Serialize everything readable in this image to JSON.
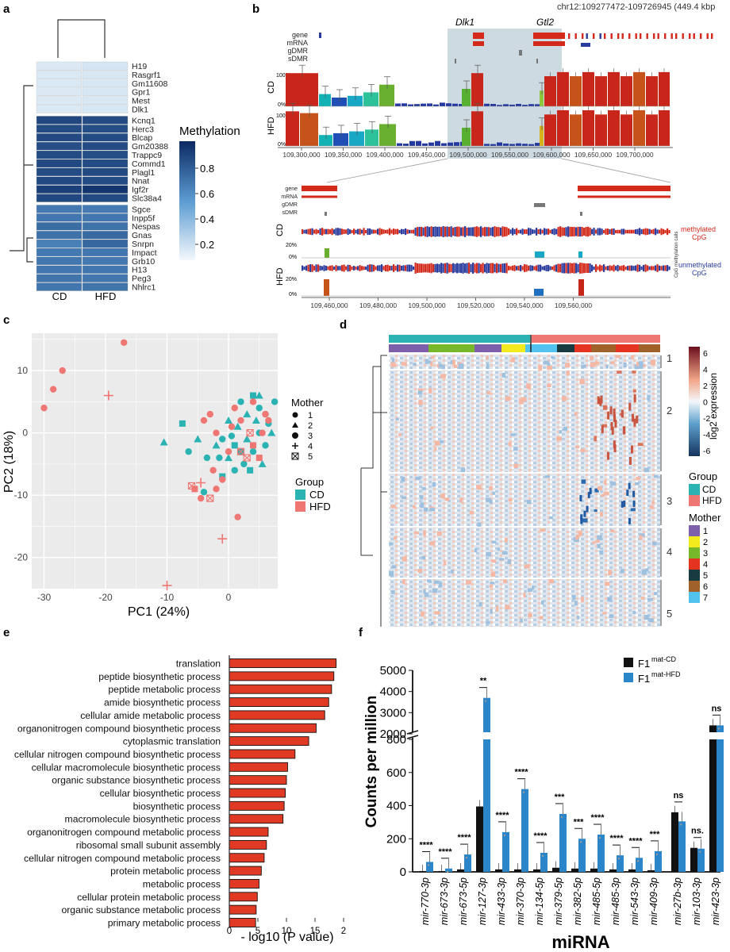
{
  "panels": {
    "a": {
      "letter": "a",
      "title": "Methylation",
      "columns": [
        "CD",
        "HFD"
      ],
      "genes": [
        "H19",
        "Rasgrf1",
        "Gm11608",
        "Gpr1",
        "Mest",
        "Dlk1",
        "Kcnq1",
        "Herc3",
        "Blcap",
        "Gm20388",
        "Trappc9",
        "Commd1",
        "Plagl1",
        "Nnat",
        "Igf2r",
        "Slc38a4",
        "Sgce",
        "Inpp5f",
        "Nespas",
        "Gnas",
        "Snrpn",
        "Impact",
        "Grb10",
        "H13",
        "Peg3",
        "Nhlrc1"
      ],
      "cd_values": [
        0.08,
        0.08,
        0.08,
        0.08,
        0.08,
        0.08,
        0.87,
        0.85,
        0.86,
        0.84,
        0.85,
        0.86,
        0.85,
        0.86,
        0.9,
        0.87,
        0.65,
        0.66,
        0.7,
        0.68,
        0.62,
        0.65,
        0.66,
        0.66,
        0.67,
        0.66
      ],
      "hfd_values": [
        0.1,
        0.09,
        0.09,
        0.09,
        0.09,
        0.09,
        0.85,
        0.84,
        0.85,
        0.85,
        0.84,
        0.85,
        0.86,
        0.85,
        0.95,
        0.86,
        0.64,
        0.66,
        0.68,
        0.72,
        0.73,
        0.66,
        0.65,
        0.66,
        0.66,
        0.67
      ],
      "colorbar_ticks": [
        "0.8",
        "0.6",
        "0.4",
        "0.2"
      ]
    },
    "b": {
      "letter": "b",
      "region": "chr12:109277472-109726945 (449.4 kbp",
      "gene_labels": [
        "Dlk1",
        "Gtl2"
      ],
      "track_labels": [
        "gene",
        "mRNA",
        "gDMR",
        "sDMR"
      ],
      "row_labels": [
        "CD",
        "HFD"
      ],
      "pct_top": "100%",
      "pct_bottom": "0%",
      "pct_20": "20%",
      "top_axis": [
        "109,300,000",
        "109,350,000",
        "109,400,000",
        "109,450,000",
        "109,500,000",
        "109,550,000",
        "109,600,000",
        "109,650,000",
        "109,700,000"
      ],
      "bottom_axis": [
        "109,460,000",
        "109,480,000",
        "109,500,000",
        "109,520,000",
        "109,540,000",
        "109,560,000"
      ],
      "legend_meth": [
        "methylated",
        "CpG"
      ],
      "legend_unmeth": [
        "unmethylated",
        "CpG"
      ],
      "side_axis": "CpG methylation calls",
      "colors": {
        "red": "#d42a1c",
        "blue": "#2a3c9e",
        "shade": "#c6d3dc"
      }
    },
    "c": {
      "letter": "c",
      "xlabel": "PC1 (24%)",
      "ylabel": "PC2 (18%)",
      "x_ticks": [
        "-30",
        "-20",
        "-10",
        "0"
      ],
      "y_ticks": [
        "10",
        "0",
        "-10",
        "-20"
      ],
      "mother_title": "Mother",
      "mother_levels": [
        "1",
        "2",
        "3",
        "4",
        "5"
      ],
      "group_title": "Group",
      "group_levels": [
        "CD",
        "HFD"
      ],
      "colors": {
        "CD": "#2bb3b3",
        "HFD": "#ef7773"
      }
    },
    "d": {
      "letter": "d",
      "cluster_labels": [
        "1",
        "2",
        "3",
        "4",
        "5"
      ],
      "colorbar_title": "log2 expression",
      "colorbar_ticks": [
        "6",
        "4",
        "2",
        "0",
        "-2",
        "-4",
        "-6"
      ],
      "group_title": "Group",
      "group_levels": [
        "CD",
        "HFD"
      ],
      "mother_title": "Mother",
      "mother_levels": [
        "1",
        "2",
        "3",
        "4",
        "5",
        "6",
        "7"
      ],
      "mother_colors": [
        "#7d5fac",
        "#f2ea1c",
        "#76b82a",
        "#e53322",
        "#173b40",
        "#a0612a",
        "#52c3ee"
      ]
    },
    "e": {
      "letter": "e",
      "xlabel": "- log10 (P value)",
      "x_ticks": [
        "0",
        "5",
        "10",
        "15",
        "2"
      ],
      "bar_color": "#e03a24"
    },
    "f": {
      "letter": "f",
      "ylabel": "Counts per million",
      "xlabel": "miRNA",
      "legend": [
        "F1",
        "mat-CD",
        "mat-HFD"
      ],
      "upper_ticks": [
        "5000",
        "4000",
        "3000",
        "2000"
      ],
      "lower_ticks": [
        "800",
        "600",
        "400",
        "200",
        "0"
      ],
      "colors": {
        "cd": "#111111",
        "hfd": "#2a86c8"
      }
    }
  },
  "chart_data": [
    {
      "type": "bar",
      "panel": "e",
      "title": "",
      "xlabel": "- log10 (P value)",
      "xlim": [
        0,
        20
      ],
      "categories": [
        "translation",
        "peptide biosynthetic process",
        "peptide metabolic process",
        "amide biosynthetic process",
        "cellular amide metabolic process",
        "organonitrogen compound biosynthetic process",
        "cytoplasmic translation",
        "cellular nitrogen compound biosynthetic process",
        "cellular macromolecule biosynthetic process",
        "organic substance biosynthetic process",
        "cellular biosynthetic process",
        "biosynthetic process",
        "macromolecule biosynthetic process",
        "organonitrogen compound metabolic process",
        "ribosomal small subunit assembly",
        "cellular nitrogen compound metabolic process",
        "protein metabolic process",
        "metabolic process",
        "cellular protein metabolic process",
        "organic substance metabolic process",
        "primary metabolic process"
      ],
      "values": [
        18.7,
        18.3,
        17.9,
        17.4,
        16.7,
        15.2,
        13.9,
        11.5,
        10.2,
        10.0,
        9.8,
        9.6,
        9.4,
        6.8,
        6.5,
        6.1,
        5.6,
        5.2,
        4.9,
        4.7,
        4.6
      ]
    },
    {
      "type": "bar",
      "panel": "f",
      "title": "",
      "xlabel": "miRNA",
      "ylabel": "Counts per million",
      "categories": [
        "mir-770-3p",
        "mir-673-3p",
        "mir-673-5p",
        "mir-127-3p",
        "mir-433-3p",
        "mir-370-3p",
        "mir-134-5p",
        "mir-379-5p",
        "mir-382-5p",
        "mir-485-5p",
        "mir-485-3p",
        "mir-543-3p",
        "mir-409-3p",
        "mir-27b-3p",
        "mir-103-3p",
        "mir-423-3p"
      ],
      "series": [
        {
          "name": "F1 mat-CD",
          "values": [
            5,
            5,
            15,
            395,
            15,
            15,
            15,
            25,
            20,
            20,
            15,
            15,
            10,
            360,
            145,
            2400
          ]
        },
        {
          "name": "F1 mat-HFD",
          "values": [
            60,
            20,
            105,
            3700,
            240,
            500,
            115,
            350,
            200,
            225,
            100,
            85,
            125,
            305,
            140,
            2400
          ]
        }
      ],
      "significance": [
        "****",
        "****",
        "****",
        "**",
        "****",
        "****",
        "****",
        "***",
        "***",
        "****",
        "****",
        "****",
        "***",
        "ns",
        "ns.",
        "ns"
      ],
      "ylim": [
        0,
        5000
      ]
    },
    {
      "type": "scatter",
      "panel": "c",
      "xlabel": "PC1 (24%)",
      "ylabel": "PC2 (18%)",
      "xlim": [
        -32,
        8
      ],
      "ylim": [
        -25,
        16
      ],
      "series": [
        {
          "name": "CD",
          "points": [
            [
              -10.5,
              -1.5
            ],
            [
              -7.5,
              1.5
            ],
            [
              -6.5,
              -3
            ],
            [
              -5,
              -1
            ],
            [
              -4,
              -9.5
            ],
            [
              -3.5,
              -4
            ],
            [
              -2,
              -2
            ],
            [
              -1.5,
              -4
            ],
            [
              -1,
              -1
            ],
            [
              0,
              2
            ],
            [
              0.5,
              -0.5
            ],
            [
              1,
              -2
            ],
            [
              1.5,
              1
            ],
            [
              2,
              -3
            ],
            [
              2.5,
              -5
            ],
            [
              3,
              -1
            ],
            [
              3.5,
              -6
            ],
            [
              4,
              -3
            ],
            [
              4.5,
              2
            ],
            [
              5,
              0
            ],
            [
              5,
              4
            ],
            [
              5.5,
              -5
            ],
            [
              6,
              3
            ],
            [
              6.5,
              1.5
            ],
            [
              7,
              0
            ],
            [
              7.5,
              5
            ],
            [
              4,
              6
            ],
            [
              3,
              3
            ],
            [
              2,
              5
            ],
            [
              1,
              -6
            ],
            [
              0,
              -4
            ],
            [
              -1,
              -7
            ],
            [
              6,
              -2
            ],
            [
              5,
              6
            ]
          ]
        },
        {
          "name": "HFD",
          "points": [
            [
              -30,
              4
            ],
            [
              -28.5,
              7
            ],
            [
              -27,
              10
            ],
            [
              -17,
              14.5
            ],
            [
              -19.5,
              6
            ],
            [
              -6,
              -8.5
            ],
            [
              -5.5,
              -9
            ],
            [
              -4.5,
              -10.5
            ],
            [
              -4.5,
              -8
            ],
            [
              -3,
              -10.5
            ],
            [
              -2.5,
              -6
            ],
            [
              -2,
              -9
            ],
            [
              -1,
              -7.5
            ],
            [
              0,
              -3
            ],
            [
              0.5,
              1
            ],
            [
              1.5,
              -13.5
            ],
            [
              -1,
              -17
            ],
            [
              -10,
              -24.5
            ],
            [
              2,
              -3
            ],
            [
              3,
              -4
            ],
            [
              3.5,
              0
            ],
            [
              4,
              -2
            ],
            [
              5,
              -4
            ],
            [
              5.5,
              0
            ],
            [
              6,
              3
            ],
            [
              6.5,
              2
            ],
            [
              -4,
              2
            ],
            [
              -2,
              0
            ],
            [
              -3,
              3
            ],
            [
              1,
              4
            ],
            [
              2,
              2
            ],
            [
              4,
              5
            ]
          ]
        }
      ]
    }
  ]
}
